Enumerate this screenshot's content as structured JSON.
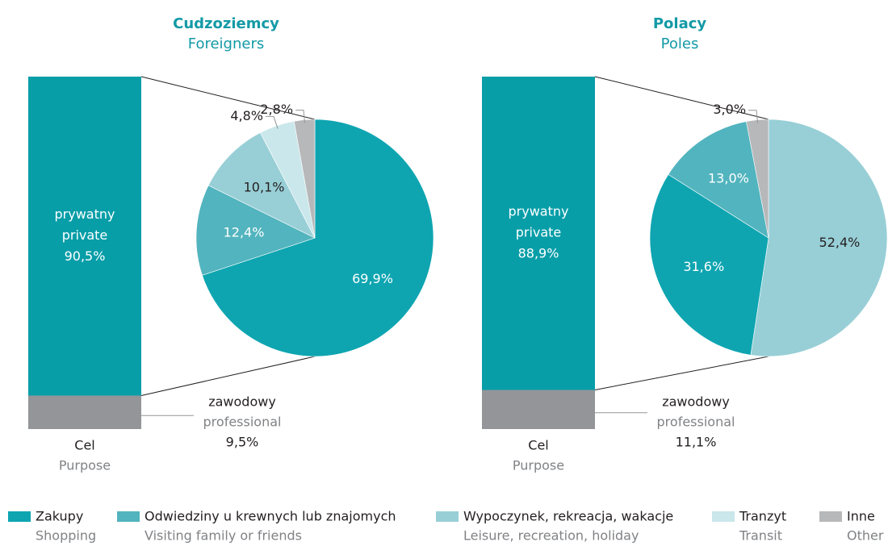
{
  "chart_data": [
    {
      "type": "bar_of_pie",
      "title": "Cudzoziemcy",
      "subtitle": "Foreigners",
      "bar": {
        "label": "Cel",
        "label_en": "Purpose",
        "segments": [
          {
            "name": "prywatny",
            "name_en": "private",
            "value": 90.5,
            "value_label": "90,5%",
            "color": "#079ea8"
          },
          {
            "name": "zawodowy",
            "name_en": "professional",
            "value": 9.5,
            "value_label": "9,5%",
            "color": "#939598"
          }
        ]
      },
      "pie": {
        "values": [
          69.9,
          12.4,
          10.1,
          4.8,
          2.8
        ],
        "value_labels": [
          "69,9%",
          "12,4%",
          "10,1%",
          "4,8%",
          "2,8%"
        ],
        "colors": [
          "#0ea5b1",
          "#52b4be",
          "#98cfd6",
          "#cae7eb",
          "#b7b8ba"
        ]
      }
    },
    {
      "type": "bar_of_pie",
      "title": "Polacy",
      "subtitle": "Poles",
      "bar": {
        "label": "Cel",
        "label_en": "Purpose",
        "segments": [
          {
            "name": "prywatny",
            "name_en": "private",
            "value": 88.9,
            "value_label": "88,9%",
            "color": "#079ea8"
          },
          {
            "name": "zawodowy",
            "name_en": "professional",
            "value": 11.1,
            "value_label": "11,1%",
            "color": "#939598"
          }
        ]
      },
      "pie": {
        "values": [
          52.4,
          31.6,
          13.0,
          3.0
        ],
        "value_labels": [
          "52,4%",
          "31,6%",
          "13,0%",
          "3,0%"
        ],
        "colors": [
          "#98cfd6",
          "#0ea5b1",
          "#52b4be",
          "#b7b8ba"
        ]
      }
    }
  ],
  "legend": [
    {
      "name": "Zakupy",
      "name_en": "Shopping",
      "color": "#0ea5b1"
    },
    {
      "name": "Odwiedziny u krewnych lub znajomych",
      "name_en": "Visiting family or friends",
      "color": "#52b4be"
    },
    {
      "name": "Wypoczynek, rekreacja, wakacje",
      "name_en": "Leisure, recreation, holiday",
      "color": "#98cfd6"
    },
    {
      "name": "Tranzyt",
      "name_en": "Transit",
      "color": "#cae7eb"
    },
    {
      "name": "Inne",
      "name_en": "Other",
      "color": "#b7b8ba"
    }
  ]
}
